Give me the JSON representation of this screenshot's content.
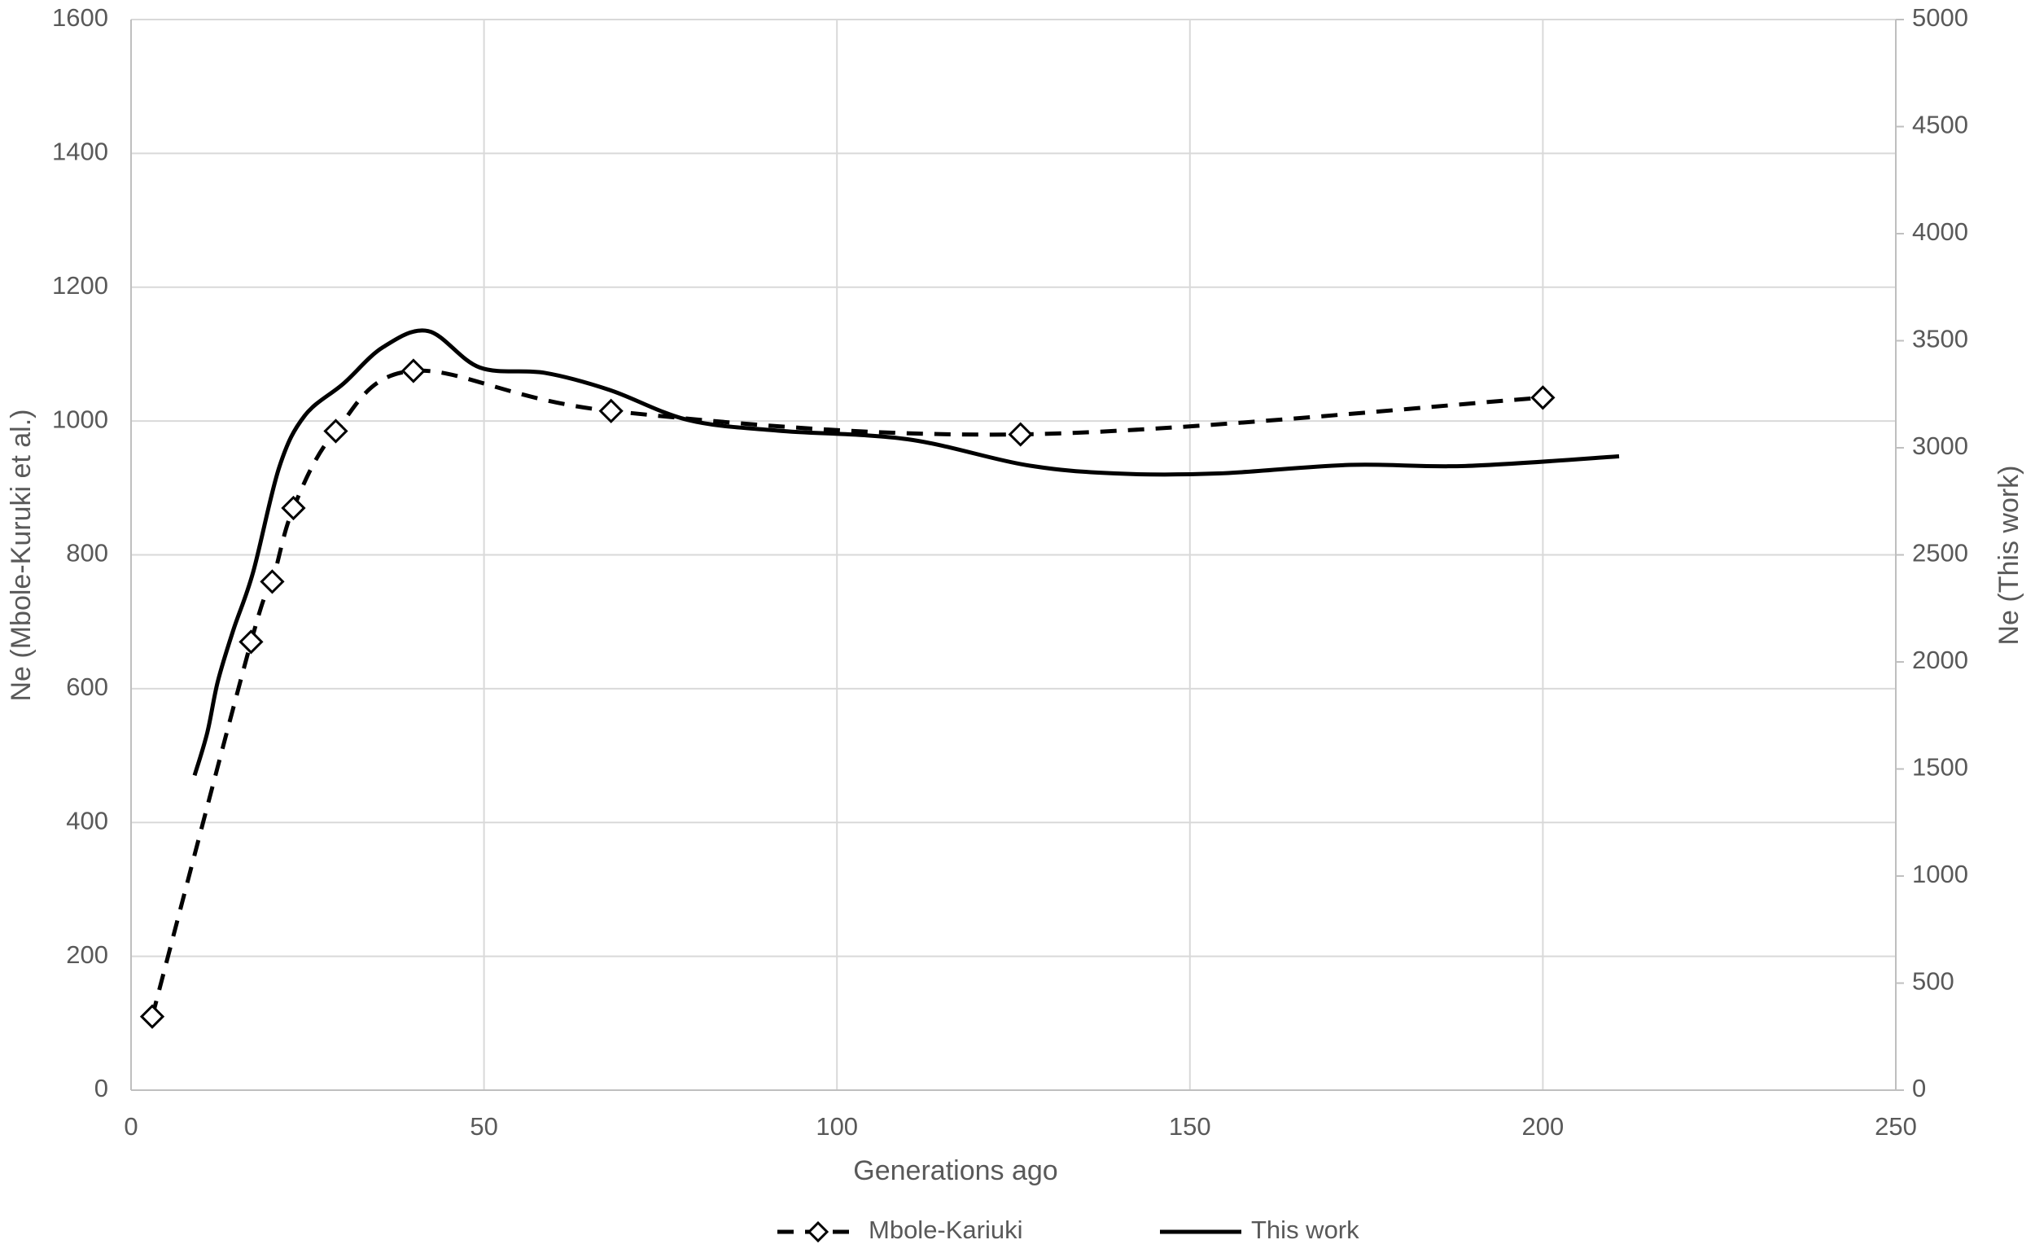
{
  "chart_data": {
    "type": "line",
    "x_label": "Generations ago",
    "y_label": "Ne (Mbole-Kuruki et al.)",
    "y2_label": "Ne (This work)",
    "xlim": [
      0,
      250
    ],
    "xticks": [
      0,
      50,
      100,
      150,
      200,
      250
    ],
    "ylim": [
      0,
      1600
    ],
    "yticks": [
      0,
      200,
      400,
      600,
      800,
      1000,
      1200,
      1400,
      1600
    ],
    "y2lim": [
      0,
      5000
    ],
    "y2ticks": [
      0,
      500,
      1000,
      1500,
      2000,
      2500,
      3000,
      3500,
      4000,
      4500,
      5000
    ],
    "grid": true,
    "legend": "bottom",
    "series": [
      {
        "name": "Mbole-Kariuki",
        "color": "#000000",
        "dashed": true,
        "marker": "diamond",
        "x": [
          3,
          17,
          20,
          23,
          29,
          40,
          68,
          126,
          200
        ],
        "values": [
          110,
          670,
          760,
          870,
          985,
          1075,
          1015,
          980,
          1035
        ]
      },
      {
        "name": "This work",
        "color": "#000000",
        "axis": "y2",
        "x": [
          9,
          10.8,
          12.3,
          14.5,
          17.3,
          21,
          24.6,
          30.1,
          35.7,
          42.1,
          49.4,
          58.6,
          67.8,
          78.9,
          91.7,
          110,
          126.7,
          139.5,
          154,
          172.6,
          189,
          210.8
        ],
        "values": [
          1470,
          1670,
          1910,
          2150,
          2420,
          2910,
          3150,
          3300,
          3470,
          3545,
          3375,
          3350,
          3270,
          3130,
          3080,
          3040,
          2920,
          2880,
          2880,
          2920,
          2915,
          2960
        ]
      }
    ]
  }
}
